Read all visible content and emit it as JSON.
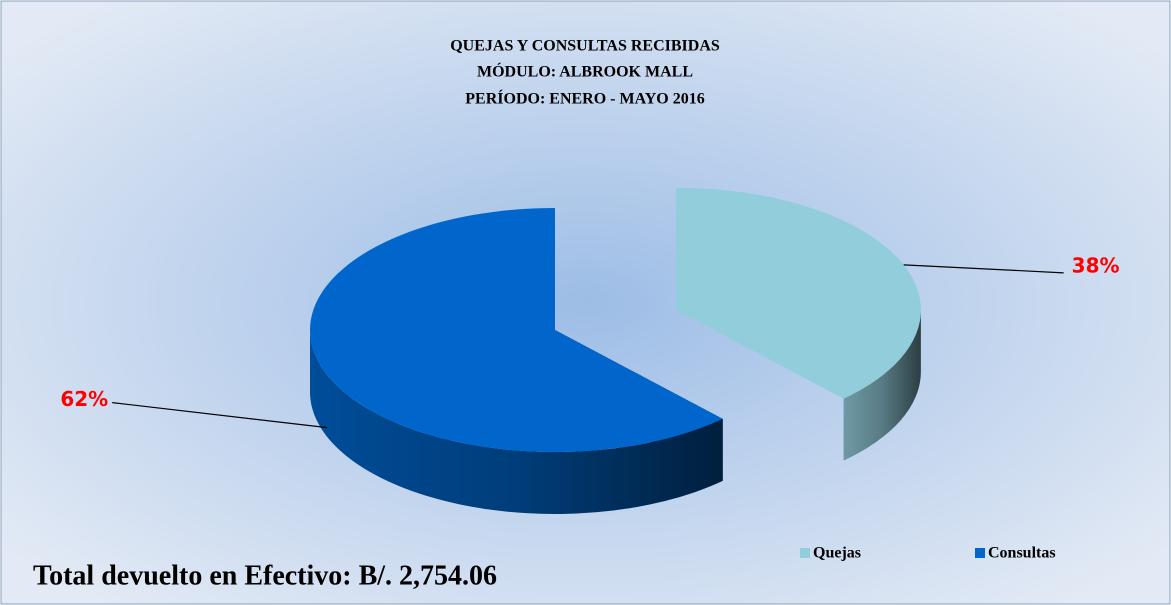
{
  "chart_data": {
    "type": "pie",
    "title": [
      "QUEJAS Y CONSULTAS RECIBIDAS",
      "MÓDULO: ALBROOK MALL",
      "PERÍODO: ENERO - MAYO 2016"
    ],
    "categories": [
      "Quejas",
      "Consultas"
    ],
    "values": [
      38,
      62
    ],
    "value_labels": [
      "38%",
      "62%"
    ],
    "colors": [
      "#92cddc",
      "#0066cc"
    ],
    "legend": "lower right",
    "annotation": "Total devuelto en Efectivo: B/. 2,754.06"
  }
}
